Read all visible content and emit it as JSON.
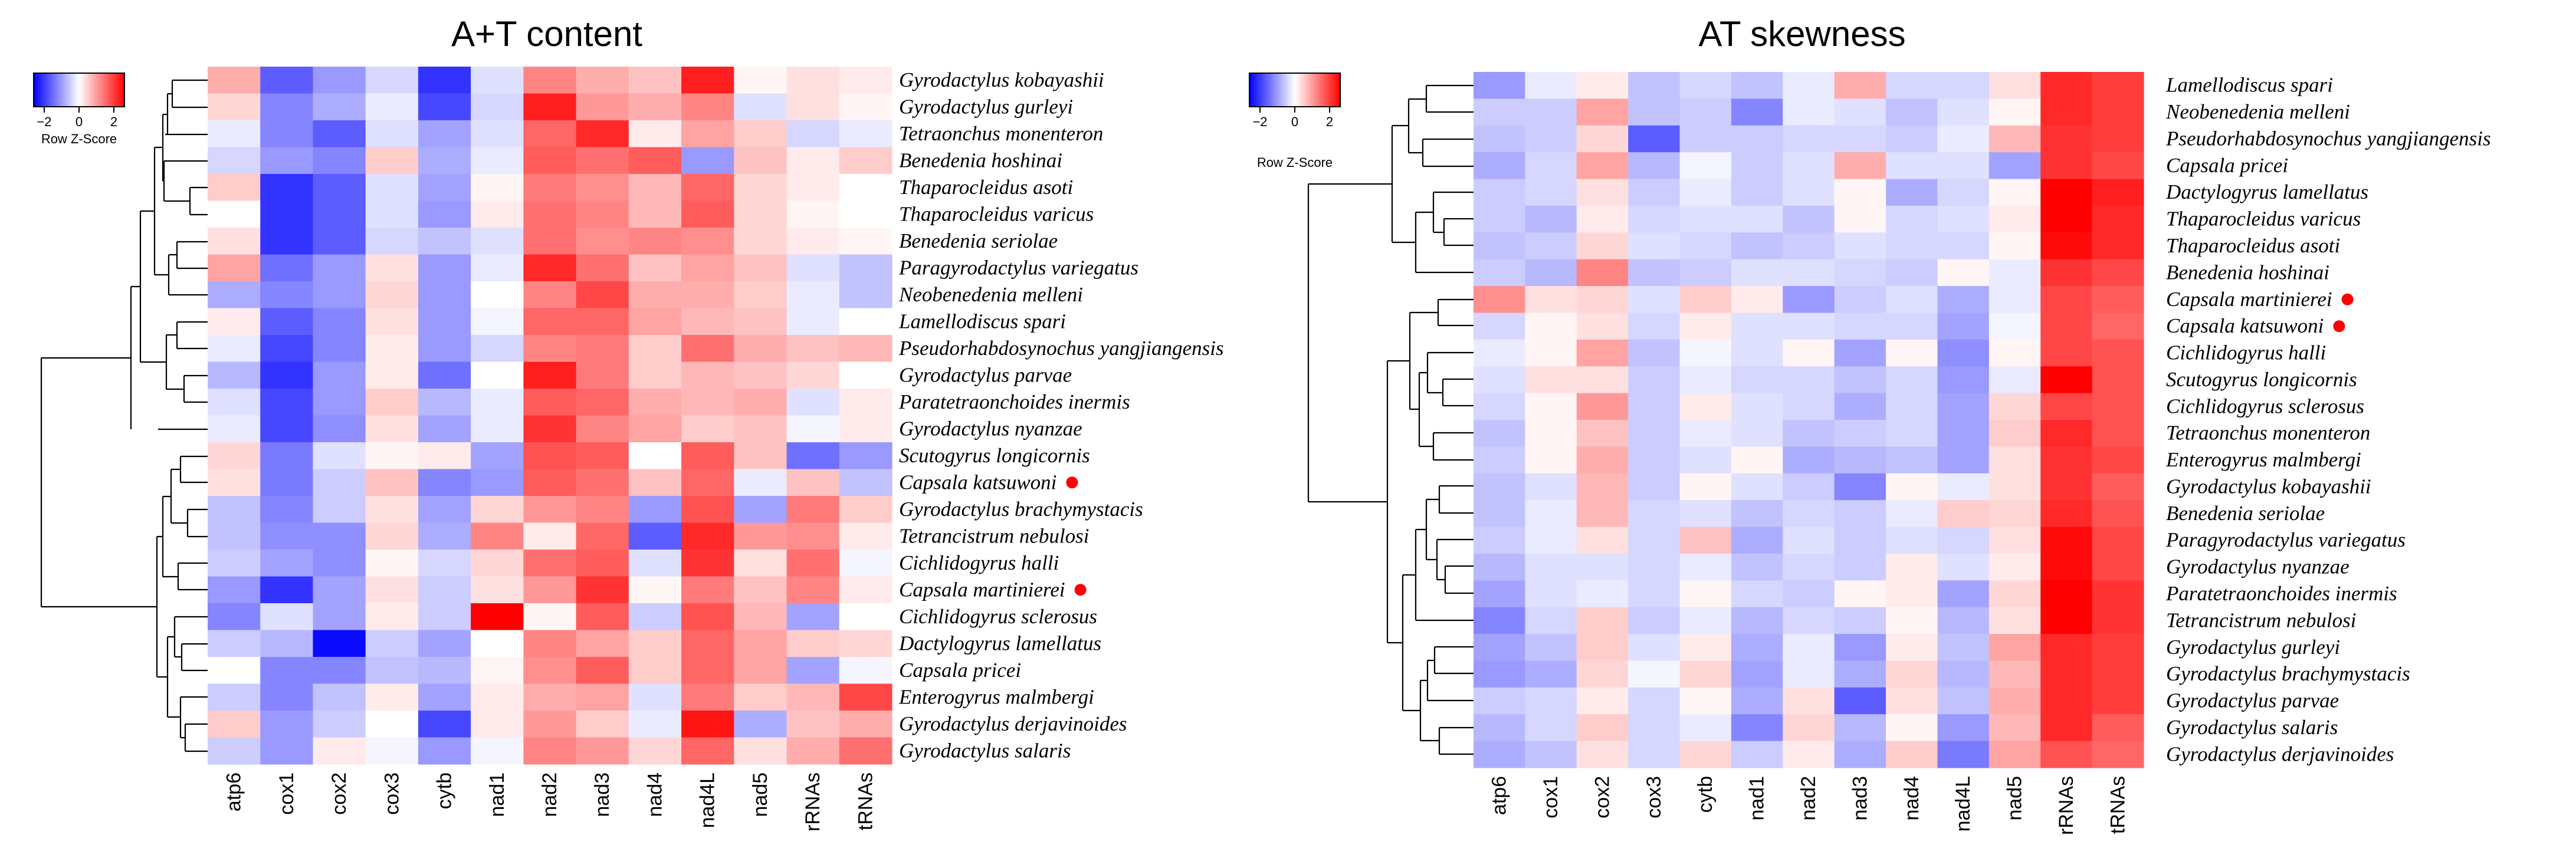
{
  "colors": {
    "low": "#0000ff",
    "mid": "#ffffff",
    "high": "#ff0000",
    "marker": "#ff0000"
  },
  "chart_data": [
    {
      "type": "heatmap",
      "title": "A+T content",
      "color_key": {
        "title": "Row Z-Score",
        "ticks": [
          "−2",
          "0",
          "2"
        ],
        "range": [
          -2.5,
          2.5
        ]
      },
      "columns": [
        "atp6",
        "cox1",
        "cox2",
        "cox3",
        "cytb",
        "nad1",
        "nad2",
        "nad3",
        "nad4",
        "nad4L",
        "nad5",
        "rRNAs",
        "tRNAs"
      ],
      "rows": [
        {
          "label": "Gyrodactylus kobayashii",
          "marked": false,
          "values": [
            0.8,
            -1.6,
            -1.0,
            -0.4,
            -2.0,
            -0.3,
            1.2,
            0.8,
            0.6,
            2.2,
            0.1,
            0.3,
            0.2
          ]
        },
        {
          "label": "Gyrodactylus gurleyi",
          "marked": false,
          "values": [
            0.4,
            -1.2,
            -0.8,
            -0.2,
            -1.8,
            -0.4,
            2.2,
            1.0,
            0.8,
            1.2,
            -0.3,
            0.3,
            0.1
          ]
        },
        {
          "label": "Tetraonchus monenteron",
          "marked": false,
          "values": [
            -0.2,
            -1.2,
            -1.6,
            -0.3,
            -0.9,
            -0.3,
            1.5,
            2.1,
            0.2,
            0.9,
            0.5,
            -0.4,
            -0.2
          ]
        },
        {
          "label": "Benedenia hoshinai",
          "marked": false,
          "values": [
            -0.4,
            -1.0,
            -1.2,
            0.5,
            -0.8,
            -0.2,
            1.6,
            1.4,
            1.6,
            -1.0,
            0.6,
            0.2,
            0.5
          ]
        },
        {
          "label": "Thaparocleidus asoti",
          "marked": false,
          "values": [
            0.5,
            -2.0,
            -1.6,
            -0.3,
            -0.9,
            0.1,
            1.3,
            1.1,
            0.7,
            1.5,
            0.4,
            0.2,
            0.0
          ]
        },
        {
          "label": "Thaparocleidus varicus",
          "marked": false,
          "values": [
            0.0,
            -2.0,
            -1.6,
            -0.3,
            -1.0,
            0.2,
            1.4,
            1.2,
            0.7,
            1.6,
            0.4,
            0.1,
            0.0
          ]
        },
        {
          "label": "Benedenia seriolae",
          "marked": false,
          "values": [
            0.3,
            -2.0,
            -1.6,
            -0.4,
            -0.6,
            -0.3,
            1.4,
            1.1,
            1.2,
            1.1,
            0.4,
            0.2,
            0.1
          ]
        },
        {
          "label": "Paragyrodactylus variegatus",
          "marked": false,
          "values": [
            0.9,
            -1.4,
            -1.0,
            0.3,
            -1.0,
            -0.2,
            2.1,
            1.4,
            0.6,
            0.9,
            0.6,
            -0.3,
            -0.6
          ]
        },
        {
          "label": "Neobenedenia melleni",
          "marked": false,
          "values": [
            -0.8,
            -1.2,
            -1.0,
            0.4,
            -1.0,
            0.0,
            1.2,
            1.8,
            0.8,
            0.8,
            0.5,
            -0.2,
            -0.6
          ]
        },
        {
          "label": "Lamellodiscus spari",
          "marked": false,
          "values": [
            0.2,
            -1.6,
            -1.2,
            0.3,
            -1.0,
            -0.1,
            1.5,
            1.5,
            0.9,
            0.7,
            0.6,
            -0.2,
            0.0
          ]
        },
        {
          "label": "Pseudorhabdosynochus yangjiangensis",
          "marked": false,
          "values": [
            -0.2,
            -1.8,
            -1.2,
            0.2,
            -1.0,
            -0.4,
            1.2,
            1.3,
            0.5,
            1.4,
            0.8,
            0.6,
            0.7
          ]
        },
        {
          "label": "Gyrodactylus parvae",
          "marked": false,
          "values": [
            -0.7,
            -2.0,
            -1.0,
            0.2,
            -1.4,
            0.0,
            2.2,
            1.3,
            0.5,
            0.7,
            0.6,
            0.4,
            0.0
          ]
        },
        {
          "label": "Paratetraonchoides inermis",
          "marked": false,
          "values": [
            -0.3,
            -1.8,
            -1.0,
            0.5,
            -0.7,
            -0.2,
            1.6,
            1.5,
            0.8,
            0.7,
            0.8,
            -0.3,
            0.2
          ]
        },
        {
          "label": "Gyrodactylus nyanzae",
          "marked": false,
          "values": [
            -0.2,
            -1.8,
            -1.1,
            0.3,
            -0.9,
            -0.2,
            2.0,
            1.2,
            0.9,
            0.5,
            0.6,
            -0.1,
            0.2
          ]
        },
        {
          "label": "Scutogyrus longicornis",
          "marked": false,
          "values": [
            0.4,
            -1.3,
            -0.3,
            0.1,
            0.2,
            -0.9,
            1.7,
            1.6,
            0.0,
            1.6,
            0.6,
            -1.4,
            -1.0
          ]
        },
        {
          "label": "Capsala katsuwoni",
          "marked": true,
          "values": [
            0.3,
            -1.3,
            -0.5,
            0.6,
            -1.2,
            -1.0,
            1.6,
            1.4,
            0.6,
            1.5,
            -0.2,
            0.6,
            -0.6
          ]
        },
        {
          "label": "Gyrodactylus brachymystacis",
          "marked": false,
          "values": [
            -0.6,
            -1.2,
            -0.5,
            0.3,
            -0.9,
            0.4,
            1.0,
            1.2,
            -1.0,
            1.7,
            -0.9,
            1.3,
            0.5
          ]
        },
        {
          "label": "Tetrancistrum nebulosi",
          "marked": false,
          "values": [
            -0.6,
            -1.1,
            -1.1,
            0.4,
            -0.8,
            1.2,
            0.2,
            1.5,
            -1.6,
            2.1,
            1.0,
            1.1,
            0.2
          ]
        },
        {
          "label": "Cichlidogyrus halli",
          "marked": false,
          "values": [
            -0.5,
            -0.9,
            -1.1,
            0.1,
            -0.4,
            0.4,
            1.4,
            1.6,
            -0.3,
            2.0,
            0.3,
            1.4,
            -0.1
          ]
        },
        {
          "label": "Capsala martinierei",
          "marked": true,
          "values": [
            -1.0,
            -2.0,
            -0.9,
            0.3,
            -0.5,
            0.3,
            1.0,
            2.0,
            0.1,
            1.3,
            0.6,
            1.2,
            0.2
          ]
        },
        {
          "label": "Cichlidogyrus sclerosus",
          "marked": false,
          "values": [
            -1.2,
            -0.3,
            -0.9,
            0.2,
            -0.5,
            2.6,
            0.1,
            1.6,
            -0.5,
            1.7,
            0.7,
            -0.9,
            0.0
          ]
        },
        {
          "label": "Dactylogyrus lamellatus",
          "marked": false,
          "values": [
            -0.5,
            -0.7,
            -2.4,
            -0.5,
            -0.9,
            0.0,
            1.2,
            0.9,
            0.5,
            1.5,
            0.9,
            0.5,
            0.4
          ]
        },
        {
          "label": "Capsala pricei",
          "marked": false,
          "values": [
            0.0,
            -1.2,
            -1.2,
            -0.6,
            -0.7,
            0.1,
            1.1,
            1.6,
            0.5,
            1.5,
            0.9,
            -0.9,
            -0.1
          ]
        },
        {
          "label": "Enterogyrus malmbergi",
          "marked": false,
          "values": [
            -0.5,
            -1.2,
            -0.6,
            0.2,
            -0.9,
            0.2,
            0.8,
            0.9,
            -0.3,
            1.3,
            0.5,
            0.7,
            1.8
          ]
        },
        {
          "label": "Gyrodactylus derjavinoides",
          "marked": false,
          "values": [
            0.5,
            -1.0,
            -0.5,
            0.0,
            -1.8,
            0.2,
            1.0,
            0.5,
            -0.2,
            2.3,
            -0.8,
            0.6,
            0.8
          ]
        },
        {
          "label": "Gyrodactylus salaris",
          "marked": false,
          "values": [
            -0.5,
            -1.0,
            0.2,
            -0.1,
            -1.0,
            -0.1,
            1.2,
            1.0,
            0.4,
            1.5,
            0.3,
            0.8,
            1.4
          ]
        }
      ]
    },
    {
      "type": "heatmap",
      "title": "AT skewness",
      "color_key": {
        "title": "Row Z-Score",
        "ticks": [
          "−2",
          "0",
          "2"
        ],
        "range": [
          -2.5,
          2.5
        ]
      },
      "columns": [
        "atp6",
        "cox1",
        "cox2",
        "cox3",
        "cytb",
        "nad1",
        "nad2",
        "nad3",
        "nad4",
        "nad4L",
        "nad5",
        "rRNAs",
        "tRNAs"
      ],
      "rows": [
        {
          "label": "Lamellodiscus spari",
          "marked": false,
          "values": [
            -1.0,
            -0.2,
            0.2,
            -0.6,
            -0.4,
            -0.6,
            -0.2,
            0.8,
            -0.4,
            -0.4,
            0.3,
            2.1,
            1.9
          ]
        },
        {
          "label": "Neobenedenia melleni",
          "marked": false,
          "values": [
            -0.5,
            -0.5,
            0.9,
            -0.6,
            -0.5,
            -1.2,
            -0.2,
            -0.3,
            -0.6,
            -0.3,
            0.1,
            2.1,
            1.9
          ]
        },
        {
          "label": "Pseudorhabdosynochus yangjiangensis",
          "marked": false,
          "values": [
            -0.6,
            -0.5,
            0.4,
            -1.6,
            -0.5,
            -0.5,
            -0.4,
            -0.4,
            -0.5,
            -0.2,
            0.7,
            2.0,
            1.9
          ]
        },
        {
          "label": "Capsala pricei",
          "marked": false,
          "values": [
            -0.8,
            -0.4,
            0.9,
            -0.7,
            -0.1,
            -0.5,
            -0.3,
            0.8,
            -0.3,
            -0.3,
            -0.9,
            2.0,
            1.8
          ]
        },
        {
          "label": "Dactylogyrus lamellatus",
          "marked": false,
          "values": [
            -0.5,
            -0.4,
            0.3,
            -0.5,
            -0.2,
            -0.5,
            -0.3,
            0.1,
            -0.8,
            -0.4,
            0.1,
            2.6,
            2.2
          ]
        },
        {
          "label": "Thaparocleidus varicus",
          "marked": false,
          "values": [
            -0.5,
            -0.7,
            0.2,
            -0.4,
            -0.3,
            -0.3,
            -0.6,
            0.1,
            -0.4,
            -0.3,
            0.2,
            2.6,
            2.1
          ]
        },
        {
          "label": "Thaparocleidus asoti",
          "marked": false,
          "values": [
            -0.6,
            -0.5,
            0.4,
            -0.3,
            -0.4,
            -0.6,
            -0.5,
            -0.3,
            -0.4,
            -0.4,
            0.1,
            2.4,
            2.1
          ]
        },
        {
          "label": "Benedenia hoshinai",
          "marked": false,
          "values": [
            -0.5,
            -0.7,
            1.2,
            -0.6,
            -0.5,
            -0.3,
            -0.3,
            -0.4,
            -0.5,
            0.1,
            -0.2,
            2.0,
            1.8
          ]
        },
        {
          "label": "Capsala martinierei",
          "marked": true,
          "values": [
            1.1,
            0.3,
            0.4,
            -0.3,
            0.5,
            0.2,
            -1.0,
            -0.5,
            -0.3,
            -0.8,
            -0.2,
            1.8,
            1.6
          ]
        },
        {
          "label": "Capsala katsuwoni",
          "marked": true,
          "values": [
            -0.4,
            0.1,
            0.3,
            -0.4,
            0.2,
            -0.3,
            -0.3,
            -0.4,
            -0.4,
            -0.9,
            -0.1,
            1.8,
            1.5
          ]
        },
        {
          "label": "Cichlidogyrus halli",
          "marked": false,
          "values": [
            -0.2,
            0.1,
            0.9,
            -0.6,
            -0.1,
            -0.3,
            0.1,
            -0.9,
            0.1,
            -1.1,
            0.1,
            1.8,
            1.7
          ]
        },
        {
          "label": "Scutogyrus longicornis",
          "marked": false,
          "values": [
            -0.3,
            0.3,
            0.3,
            -0.5,
            -0.2,
            -0.4,
            -0.4,
            -0.6,
            -0.4,
            -1.0,
            -0.2,
            2.5,
            1.7
          ]
        },
        {
          "label": "Cichlidogyrus sclerosus",
          "marked": false,
          "values": [
            -0.4,
            0.1,
            1.0,
            -0.5,
            0.2,
            -0.3,
            -0.4,
            -0.8,
            -0.4,
            -0.9,
            0.4,
            1.8,
            1.7
          ]
        },
        {
          "label": "Tetraonchus monenteron",
          "marked": false,
          "values": [
            -0.6,
            0.1,
            0.6,
            -0.5,
            -0.2,
            -0.3,
            -0.6,
            -0.5,
            -0.4,
            -0.9,
            0.5,
            2.1,
            1.7
          ]
        },
        {
          "label": "Enterogyrus malmbergi",
          "marked": false,
          "values": [
            -0.5,
            0.1,
            0.8,
            -0.5,
            -0.3,
            0.1,
            -0.8,
            -0.7,
            -0.6,
            -0.9,
            0.3,
            2.0,
            1.8
          ]
        },
        {
          "label": "Gyrodactylus kobayashii",
          "marked": false,
          "values": [
            -0.6,
            -0.3,
            0.7,
            -0.5,
            0.1,
            -0.3,
            -0.5,
            -1.2,
            0.1,
            -0.2,
            0.3,
            2.0,
            1.6
          ]
        },
        {
          "label": "Benedenia seriolae",
          "marked": false,
          "values": [
            -0.6,
            -0.2,
            0.7,
            -0.4,
            -0.3,
            -0.6,
            -0.4,
            -0.5,
            -0.2,
            0.5,
            0.4,
            2.1,
            1.7
          ]
        },
        {
          "label": "Paragyrodactylus variegatus",
          "marked": false,
          "values": [
            -0.5,
            -0.2,
            0.3,
            -0.4,
            0.6,
            -0.8,
            -0.3,
            -0.5,
            -0.3,
            -0.4,
            0.3,
            2.4,
            1.8
          ]
        },
        {
          "label": "Gyrodactylus nyanzae",
          "marked": false,
          "values": [
            -0.7,
            -0.3,
            -0.3,
            -0.4,
            -0.2,
            -0.6,
            -0.4,
            -0.5,
            0.2,
            -0.3,
            0.2,
            2.4,
            1.8
          ]
        },
        {
          "label": "Paratetraonchoides inermis",
          "marked": false,
          "values": [
            -0.9,
            -0.3,
            -0.2,
            -0.4,
            0.1,
            -0.4,
            -0.5,
            0.1,
            0.2,
            -0.9,
            0.4,
            2.6,
            2.0
          ]
        },
        {
          "label": "Tetrancistrum nebulosi",
          "marked": false,
          "values": [
            -1.2,
            -0.4,
            0.5,
            -0.5,
            -0.2,
            -0.7,
            -0.4,
            -0.5,
            0.1,
            -0.7,
            0.3,
            2.6,
            2.0
          ]
        },
        {
          "label": "Gyrodactylus gurleyi",
          "marked": false,
          "values": [
            -0.9,
            -0.6,
            0.5,
            -0.3,
            0.2,
            -0.8,
            -0.2,
            -1.0,
            0.2,
            -0.6,
            0.9,
            2.1,
            1.9
          ]
        },
        {
          "label": "Gyrodactylus brachymystacis",
          "marked": false,
          "values": [
            -1.0,
            -0.8,
            0.4,
            -0.1,
            0.4,
            -0.9,
            -0.2,
            -0.8,
            0.4,
            -0.7,
            0.7,
            2.1,
            1.9
          ]
        },
        {
          "label": "Gyrodactylus parvae",
          "marked": false,
          "values": [
            -0.5,
            -0.4,
            0.2,
            -0.4,
            0.1,
            -0.8,
            0.3,
            -1.6,
            0.3,
            -0.6,
            0.8,
            2.1,
            1.9
          ]
        },
        {
          "label": "Gyrodactylus salaris",
          "marked": false,
          "values": [
            -0.7,
            -0.4,
            0.5,
            -0.4,
            -0.2,
            -1.2,
            0.4,
            -0.7,
            0.1,
            -1.0,
            0.7,
            2.1,
            1.6
          ]
        },
        {
          "label": "Gyrodactylus derjavinoides",
          "marked": false,
          "values": [
            -0.8,
            -0.6,
            0.3,
            -0.4,
            0.4,
            -0.5,
            0.2,
            -0.8,
            0.5,
            -1.3,
            0.9,
            1.7,
            1.5
          ]
        }
      ]
    }
  ]
}
